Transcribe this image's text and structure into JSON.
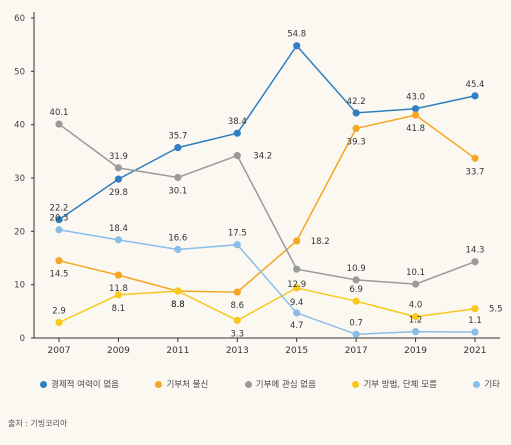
{
  "chart_data": {
    "type": "line",
    "x": [
      "2007",
      "2009",
      "2011",
      "2013",
      "2015",
      "2017",
      "2019",
      "2021"
    ],
    "ylim": [
      0,
      60
    ],
    "yticks": [
      "0",
      "10",
      "20",
      "30",
      "40",
      "50",
      "60"
    ],
    "grid": false,
    "legend_position": "bottom",
    "series": [
      {
        "name": "경제적 여력이 없음",
        "color": "#2f7fc1",
        "values": [
          22.2,
          29.8,
          35.7,
          38.4,
          54.8,
          42.2,
          43.0,
          45.4
        ],
        "labels": [
          "22.2",
          "29.8",
          "35.7",
          "38.4",
          "54.8",
          "42.2",
          "43.0",
          "45.4"
        ]
      },
      {
        "name": "기부처 불신",
        "color": "#f5a623",
        "values": [
          14.5,
          11.8,
          8.8,
          8.6,
          18.2,
          39.3,
          41.8,
          33.7
        ],
        "labels": [
          "14.5",
          "11.8",
          "8.8",
          "8.6",
          "18.2",
          "39.3",
          "41.8",
          "33.7"
        ]
      },
      {
        "name": "기부에 관심 없음",
        "color": "#9a9a9a",
        "values": [
          40.1,
          31.9,
          30.1,
          34.2,
          12.9,
          10.9,
          10.1,
          14.3
        ],
        "labels": [
          "40.1",
          "31.9",
          "30.1",
          "34.2",
          "12.9",
          "10.9",
          "10.1",
          "14.3"
        ]
      },
      {
        "name": "기부 방법, 단체 모름",
        "color": "#f8c81c",
        "values": [
          2.9,
          8.1,
          8.8,
          3.3,
          9.4,
          6.9,
          4.0,
          5.5
        ],
        "labels": [
          "2.9",
          "8.1",
          "8.8",
          "3.3",
          "9.4",
          "6.9",
          "4.0",
          "5.5"
        ]
      },
      {
        "name": "기타",
        "color": "#8cbde8",
        "values": [
          20.3,
          18.4,
          16.6,
          17.5,
          4.7,
          0.7,
          1.2,
          1.1
        ],
        "labels": [
          "20.3",
          "18.4",
          "16.6",
          "17.5",
          "4.7",
          "0.7",
          "1.2",
          "1.1"
        ]
      }
    ]
  },
  "source": "출처 : 기빙코리아"
}
